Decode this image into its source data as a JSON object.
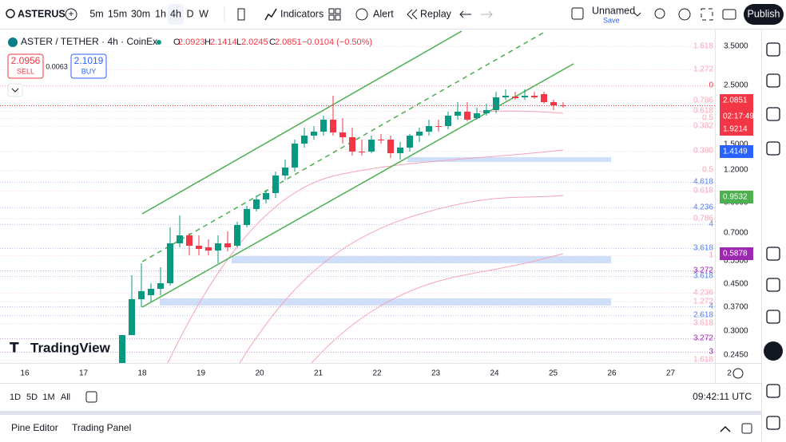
{
  "toolbar": {
    "symbol": "ASTERUS",
    "intervals": [
      "5m",
      "15m",
      "30m",
      "1h",
      "4h",
      "D",
      "W"
    ],
    "indicators": "Indicators",
    "alert": "Alert",
    "replay": "Replay",
    "layout_name": "Unnamed",
    "layout_save": "Save",
    "publish": "Publish"
  },
  "legend": {
    "title": "ASTER / TETHER · 4h · CoinEx",
    "o_label": "O",
    "o": "2.0923",
    "h_label": "H",
    "h": "2.1414",
    "l_label": "L",
    "l": "2.0245",
    "c_label": "C",
    "c": "2.0851",
    "change": "−0.0104 (−0.50%)",
    "sell_price": "2.0956",
    "sell": "SELL",
    "spread": "0.0063",
    "buy_price": "2.1019",
    "buy": "BUY"
  },
  "price_axis": [
    "3.5000",
    "2.5000",
    "1.5000",
    "1.2000",
    "0.9000",
    "0.7000",
    "0.5500",
    "0.4500",
    "0.3700",
    "0.3000",
    "0.2450"
  ],
  "fib_labels": [
    "1.618",
    "1.272",
    "0",
    "0.786",
    "0.618",
    "0.5",
    "0.382",
    "0.380",
    "0.5",
    "4.618",
    "0.618",
    "4.236",
    "0.786",
    "4",
    "3.618",
    "1",
    "3.272",
    "3.618",
    "4.236",
    "1.272",
    "4",
    "2.618",
    "3.618",
    "3.272",
    "3",
    "1.618"
  ],
  "price_tags": {
    "last": "2.0851",
    "countdown": "02:17:49",
    "tag2": "1.9214",
    "tag3": "1.4149",
    "tag4": "0.9532",
    "tag5": "0.5878"
  },
  "time_axis": [
    "16",
    "17",
    "18",
    "19",
    "20",
    "21",
    "22",
    "23",
    "24",
    "25",
    "26",
    "27",
    "2"
  ],
  "logo": "TradingView",
  "bottom": {
    "ranges": [
      "1D",
      "5D",
      "1M",
      "All"
    ],
    "clock": "09:42:11 UTC"
  },
  "panel": {
    "pine_editor": "Pine Editor",
    "trading_panel": "Trading Panel"
  }
}
